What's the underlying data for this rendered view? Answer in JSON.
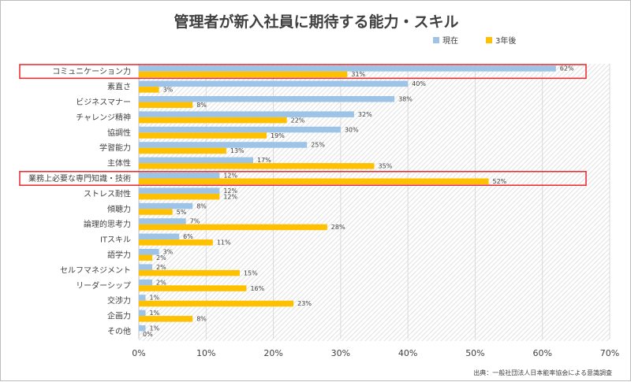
{
  "chart_data": {
    "type": "bar",
    "orientation": "horizontal",
    "title": "管理者が新入社員に期待する能力・スキル",
    "categories": [
      "コミュニケーション力",
      "素直さ",
      "ビジネスマナー",
      "チャレンジ精神",
      "協調性",
      "学習能力",
      "主体性",
      "業務上必要な専門知識・技術",
      "ストレス耐性",
      "傾聴力",
      "論理的思考力",
      "ITスキル",
      "語学力",
      "セルフマネジメント",
      "リーダーシップ",
      "交渉力",
      "企画力",
      "その他"
    ],
    "series": [
      {
        "name": "現在",
        "color": "#9dc3e6",
        "values": [
          62,
          40,
          38,
          32,
          30,
          25,
          17,
          12,
          12,
          8,
          7,
          6,
          3,
          2,
          2,
          1,
          1,
          1
        ],
        "labels": [
          "62%",
          "40%",
          "38%",
          "32%",
          "30%",
          "25%",
          "17%",
          "12%",
          "12%",
          "8%",
          "7%",
          "6%",
          "3%",
          "2%",
          "2%",
          "1%",
          "1%",
          "1%"
        ]
      },
      {
        "name": "3年後",
        "color": "#ffc000",
        "values": [
          31,
          3,
          8,
          22,
          19,
          13,
          35,
          52,
          12,
          5,
          28,
          11,
          2,
          15,
          16,
          23,
          8,
          0
        ],
        "labels": [
          "31%",
          "3%",
          "8%",
          "22%",
          "19%",
          "13%",
          "35%",
          "52%",
          "12%",
          "5%",
          "28%",
          "11%",
          "2%",
          "15%",
          "16%",
          "23%",
          "8%",
          "0%"
        ]
      }
    ],
    "xlim": [
      0,
      70
    ],
    "xticks": [
      0,
      10,
      20,
      30,
      40,
      50,
      60,
      70
    ],
    "xtick_labels": [
      "0%",
      "10%",
      "20%",
      "30%",
      "40%",
      "50%",
      "60%",
      "70%"
    ],
    "legend_position": "top-right",
    "grid": true,
    "highlighted_categories": [
      "コミュニケーション力",
      "業務上必要な専門知識・技術"
    ],
    "highlight_color": "#e8262a",
    "source": "出典：一般社団法人日本能率協会による意識調査"
  }
}
